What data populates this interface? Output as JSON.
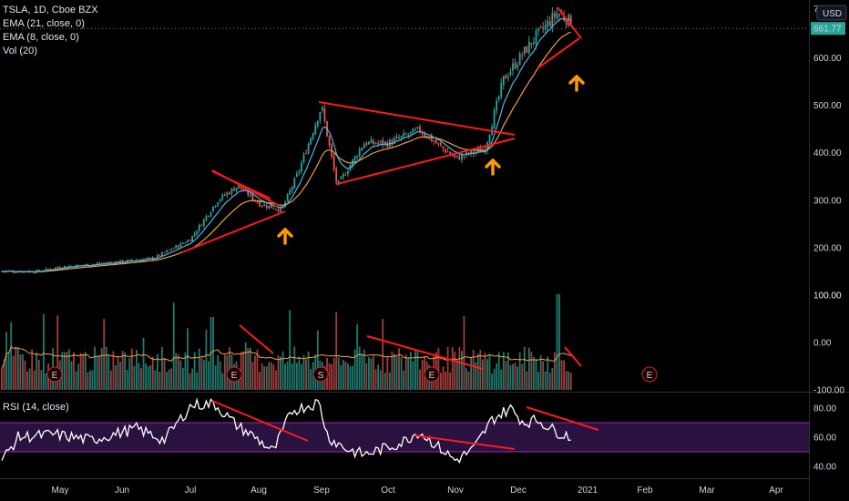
{
  "legend": {
    "symbol": "TSLA, 1D, Cboe BZX",
    "ema21": "EMA (21, close, 0)",
    "ema8": "EMA (8, close, 0)",
    "vol": "Vol (20)"
  },
  "rsi_legend": "RSI (14, close)",
  "currency": "USD",
  "last_price_label": "661.77",
  "top_tick_label": "7",
  "colors": {
    "background": "#000000",
    "up": "#26a69a",
    "down": "#ef5350",
    "ema21": "#f0a040",
    "ema8": "#4db6e8",
    "annotation_line": "#ff1a1a",
    "arrow": "#ff9800",
    "rsi_line": "#ffffff",
    "rsi_band": "#2a1240",
    "rsi_band_border": "#9c27b0",
    "earnings_marker": "#c62828"
  },
  "chart_data": [
    {
      "type": "candlestick",
      "title": "TSLA, 1D, Cboe BZX",
      "y_axis": {
        "ticks": [
          100,
          200,
          300,
          400,
          500,
          600
        ],
        "tick_labels": [
          "100.00",
          "200.00",
          "300.00",
          "400.00",
          "500.00",
          "600.00"
        ]
      },
      "x_axis": {
        "ticks": [
          "May",
          "Jun",
          "Jul",
          "Aug",
          "Sep",
          "Oct",
          "Nov",
          "Dec",
          "2021",
          "Feb",
          "Mar",
          "Apr"
        ]
      },
      "close_path": [
        [
          "Apr 20",
          150
        ],
        [
          "May 1",
          160
        ],
        [
          "May 15",
          164
        ],
        [
          "Jun 1",
          171
        ],
        [
          "Jun 15",
          178
        ],
        [
          "Jul 1",
          218
        ],
        [
          "Jul 13",
          300
        ],
        [
          "Jul 22",
          331
        ],
        [
          "Aug 1",
          293
        ],
        [
          "Aug 12",
          280
        ],
        [
          "Aug 20",
          360
        ],
        [
          "Sep 1",
          498
        ],
        [
          "Sep 8",
          330
        ],
        [
          "Sep 20",
          420
        ],
        [
          "Oct 1",
          420
        ],
        [
          "Oct 15",
          448
        ],
        [
          "Nov 1",
          388
        ],
        [
          "Nov 15",
          408
        ],
        [
          "Nov 24",
          555
        ],
        [
          "Dec 8",
          641
        ],
        [
          "Dec 18",
          695
        ],
        [
          "Dec 28",
          661.77
        ]
      ],
      "last_price": 661.77
    },
    {
      "type": "bar",
      "title": "Vol (20)",
      "y_axis": {
        "ticks": [
          100,
          0,
          -100
        ],
        "tick_labels": [
          "100.00",
          "0.00",
          "-100.00"
        ]
      },
      "earnings_markers": [
        "Apr 29",
        "Jul 22",
        "Oct 21",
        "Jan 27"
      ],
      "split_marker": "Aug 31",
      "marker_labels": [
        "E",
        "E",
        "S",
        "E",
        "E"
      ]
    },
    {
      "type": "line",
      "title": "RSI (14, close)",
      "y_axis": {
        "ticks": [
          80,
          60,
          40
        ],
        "tick_labels": [
          "80.00",
          "60.00",
          "40.00"
        ]
      },
      "band": [
        50,
        70
      ]
    }
  ],
  "annotations": {
    "pattern_lines": 12,
    "arrows": 3
  }
}
